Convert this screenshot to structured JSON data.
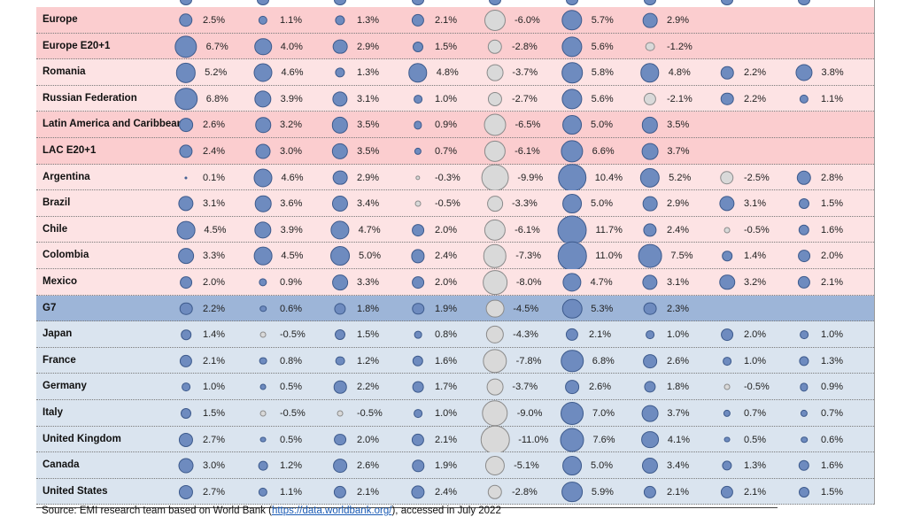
{
  "colors": {
    "positive_bubble": "#6e8bbf",
    "negative_bubble": "#d9d9d9",
    "row_pink": "#fde3e4",
    "row_pink_highlight": "#fbcdcf",
    "row_blue": "#dae4ef",
    "row_blue_highlight": "#9db5d8",
    "link": "#1a5bb5"
  },
  "rows": [
    {
      "name": "Europe",
      "style": "pink-hl",
      "values": [
        "2.5%",
        "1.1%",
        "1.3%",
        "2.1%",
        "-6.0%",
        "5.7%",
        "2.9%",
        null,
        null
      ]
    },
    {
      "name": "Europe E20+1",
      "style": "pink-hl",
      "values": [
        "6.7%",
        "4.0%",
        "2.9%",
        "1.5%",
        "-2.8%",
        "5.6%",
        "-1.2%",
        null,
        null
      ]
    },
    {
      "name": "Romania",
      "style": "pink",
      "values": [
        "5.2%",
        "4.6%",
        "1.3%",
        "4.8%",
        "-3.7%",
        "5.8%",
        "4.8%",
        "2.2%",
        "3.8%"
      ]
    },
    {
      "name": "Russian Federation",
      "style": "pink",
      "values": [
        "6.8%",
        "3.9%",
        "3.1%",
        "1.0%",
        "-2.7%",
        "5.6%",
        "-2.1%",
        "2.2%",
        "1.1%"
      ]
    },
    {
      "name": "Latin America and Caribbean",
      "style": "pink-hl",
      "values": [
        "2.6%",
        "3.2%",
        "3.5%",
        "0.9%",
        "-6.5%",
        "5.0%",
        "3.5%",
        null,
        null
      ]
    },
    {
      "name": "LAC E20+1",
      "style": "pink-hl",
      "values": [
        "2.4%",
        "3.0%",
        "3.5%",
        "0.7%",
        "-6.1%",
        "6.6%",
        "3.7%",
        null,
        null
      ]
    },
    {
      "name": "Argentina",
      "style": "pink",
      "values": [
        "0.1%",
        "4.6%",
        "2.9%",
        "-0.3%",
        "-9.9%",
        "10.4%",
        "5.2%",
        "-2.5%",
        "2.8%"
      ]
    },
    {
      "name": "Brazil",
      "style": "pink",
      "values": [
        "3.1%",
        "3.6%",
        "3.4%",
        "-0.5%",
        "-3.3%",
        "5.0%",
        "2.9%",
        "3.1%",
        "1.5%"
      ]
    },
    {
      "name": "Chile",
      "style": "pink",
      "values": [
        "4.5%",
        "3.9%",
        "4.7%",
        "2.0%",
        "-6.1%",
        "11.7%",
        "2.4%",
        "-0.5%",
        "1.6%"
      ]
    },
    {
      "name": "Colombia",
      "style": "pink",
      "values": [
        "3.3%",
        "4.5%",
        "5.0%",
        "2.4%",
        "-7.3%",
        "11.0%",
        "7.5%",
        "1.4%",
        "2.0%"
      ]
    },
    {
      "name": "Mexico",
      "style": "pink",
      "values": [
        "2.0%",
        "0.9%",
        "3.3%",
        "2.0%",
        "-8.0%",
        "4.7%",
        "3.1%",
        "3.2%",
        "2.1%"
      ]
    },
    {
      "name": "G7",
      "style": "blue-hl",
      "values": [
        "2.2%",
        "0.6%",
        "1.8%",
        "1.9%",
        "-4.5%",
        "5.3%",
        "2.3%",
        null,
        null
      ]
    },
    {
      "name": "Japan",
      "style": "blue",
      "values": [
        "1.4%",
        "-0.5%",
        "1.5%",
        "0.8%",
        "-4.3%",
        "2.1%",
        "1.0%",
        "2.0%",
        "1.0%"
      ]
    },
    {
      "name": "France",
      "style": "blue",
      "values": [
        "2.1%",
        "0.8%",
        "1.2%",
        "1.6%",
        "-7.8%",
        "6.8%",
        "2.6%",
        "1.0%",
        "1.3%"
      ]
    },
    {
      "name": "Germany",
      "style": "blue",
      "values": [
        "1.0%",
        "0.5%",
        "2.2%",
        "1.7%",
        "-3.7%",
        "2.6%",
        "1.8%",
        "-0.5%",
        "0.9%"
      ]
    },
    {
      "name": "Italy",
      "style": "blue",
      "values": [
        "1.5%",
        "-0.5%",
        "-0.5%",
        "1.0%",
        "-9.0%",
        "7.0%",
        "3.7%",
        "0.7%",
        "0.7%"
      ]
    },
    {
      "name": "United Kingdom",
      "style": "blue",
      "values": [
        "2.7%",
        "0.5%",
        "2.0%",
        "2.1%",
        "-11.0%",
        "7.6%",
        "4.1%",
        "0.5%",
        "0.6%"
      ]
    },
    {
      "name": "Canada",
      "style": "blue",
      "values": [
        "3.0%",
        "1.2%",
        "2.6%",
        "1.9%",
        "-5.1%",
        "5.0%",
        "3.4%",
        "1.3%",
        "1.6%"
      ]
    },
    {
      "name": "United States",
      "style": "blue",
      "values": [
        "2.7%",
        "1.1%",
        "2.1%",
        "2.4%",
        "-2.8%",
        "5.9%",
        "2.1%",
        "2.1%",
        "1.5%"
      ]
    }
  ],
  "source": {
    "prefix": "Source: EMI research team based on World Bank (",
    "link_text": "https://data.worldbank.org/",
    "suffix": "), accessed in July 2022"
  }
}
